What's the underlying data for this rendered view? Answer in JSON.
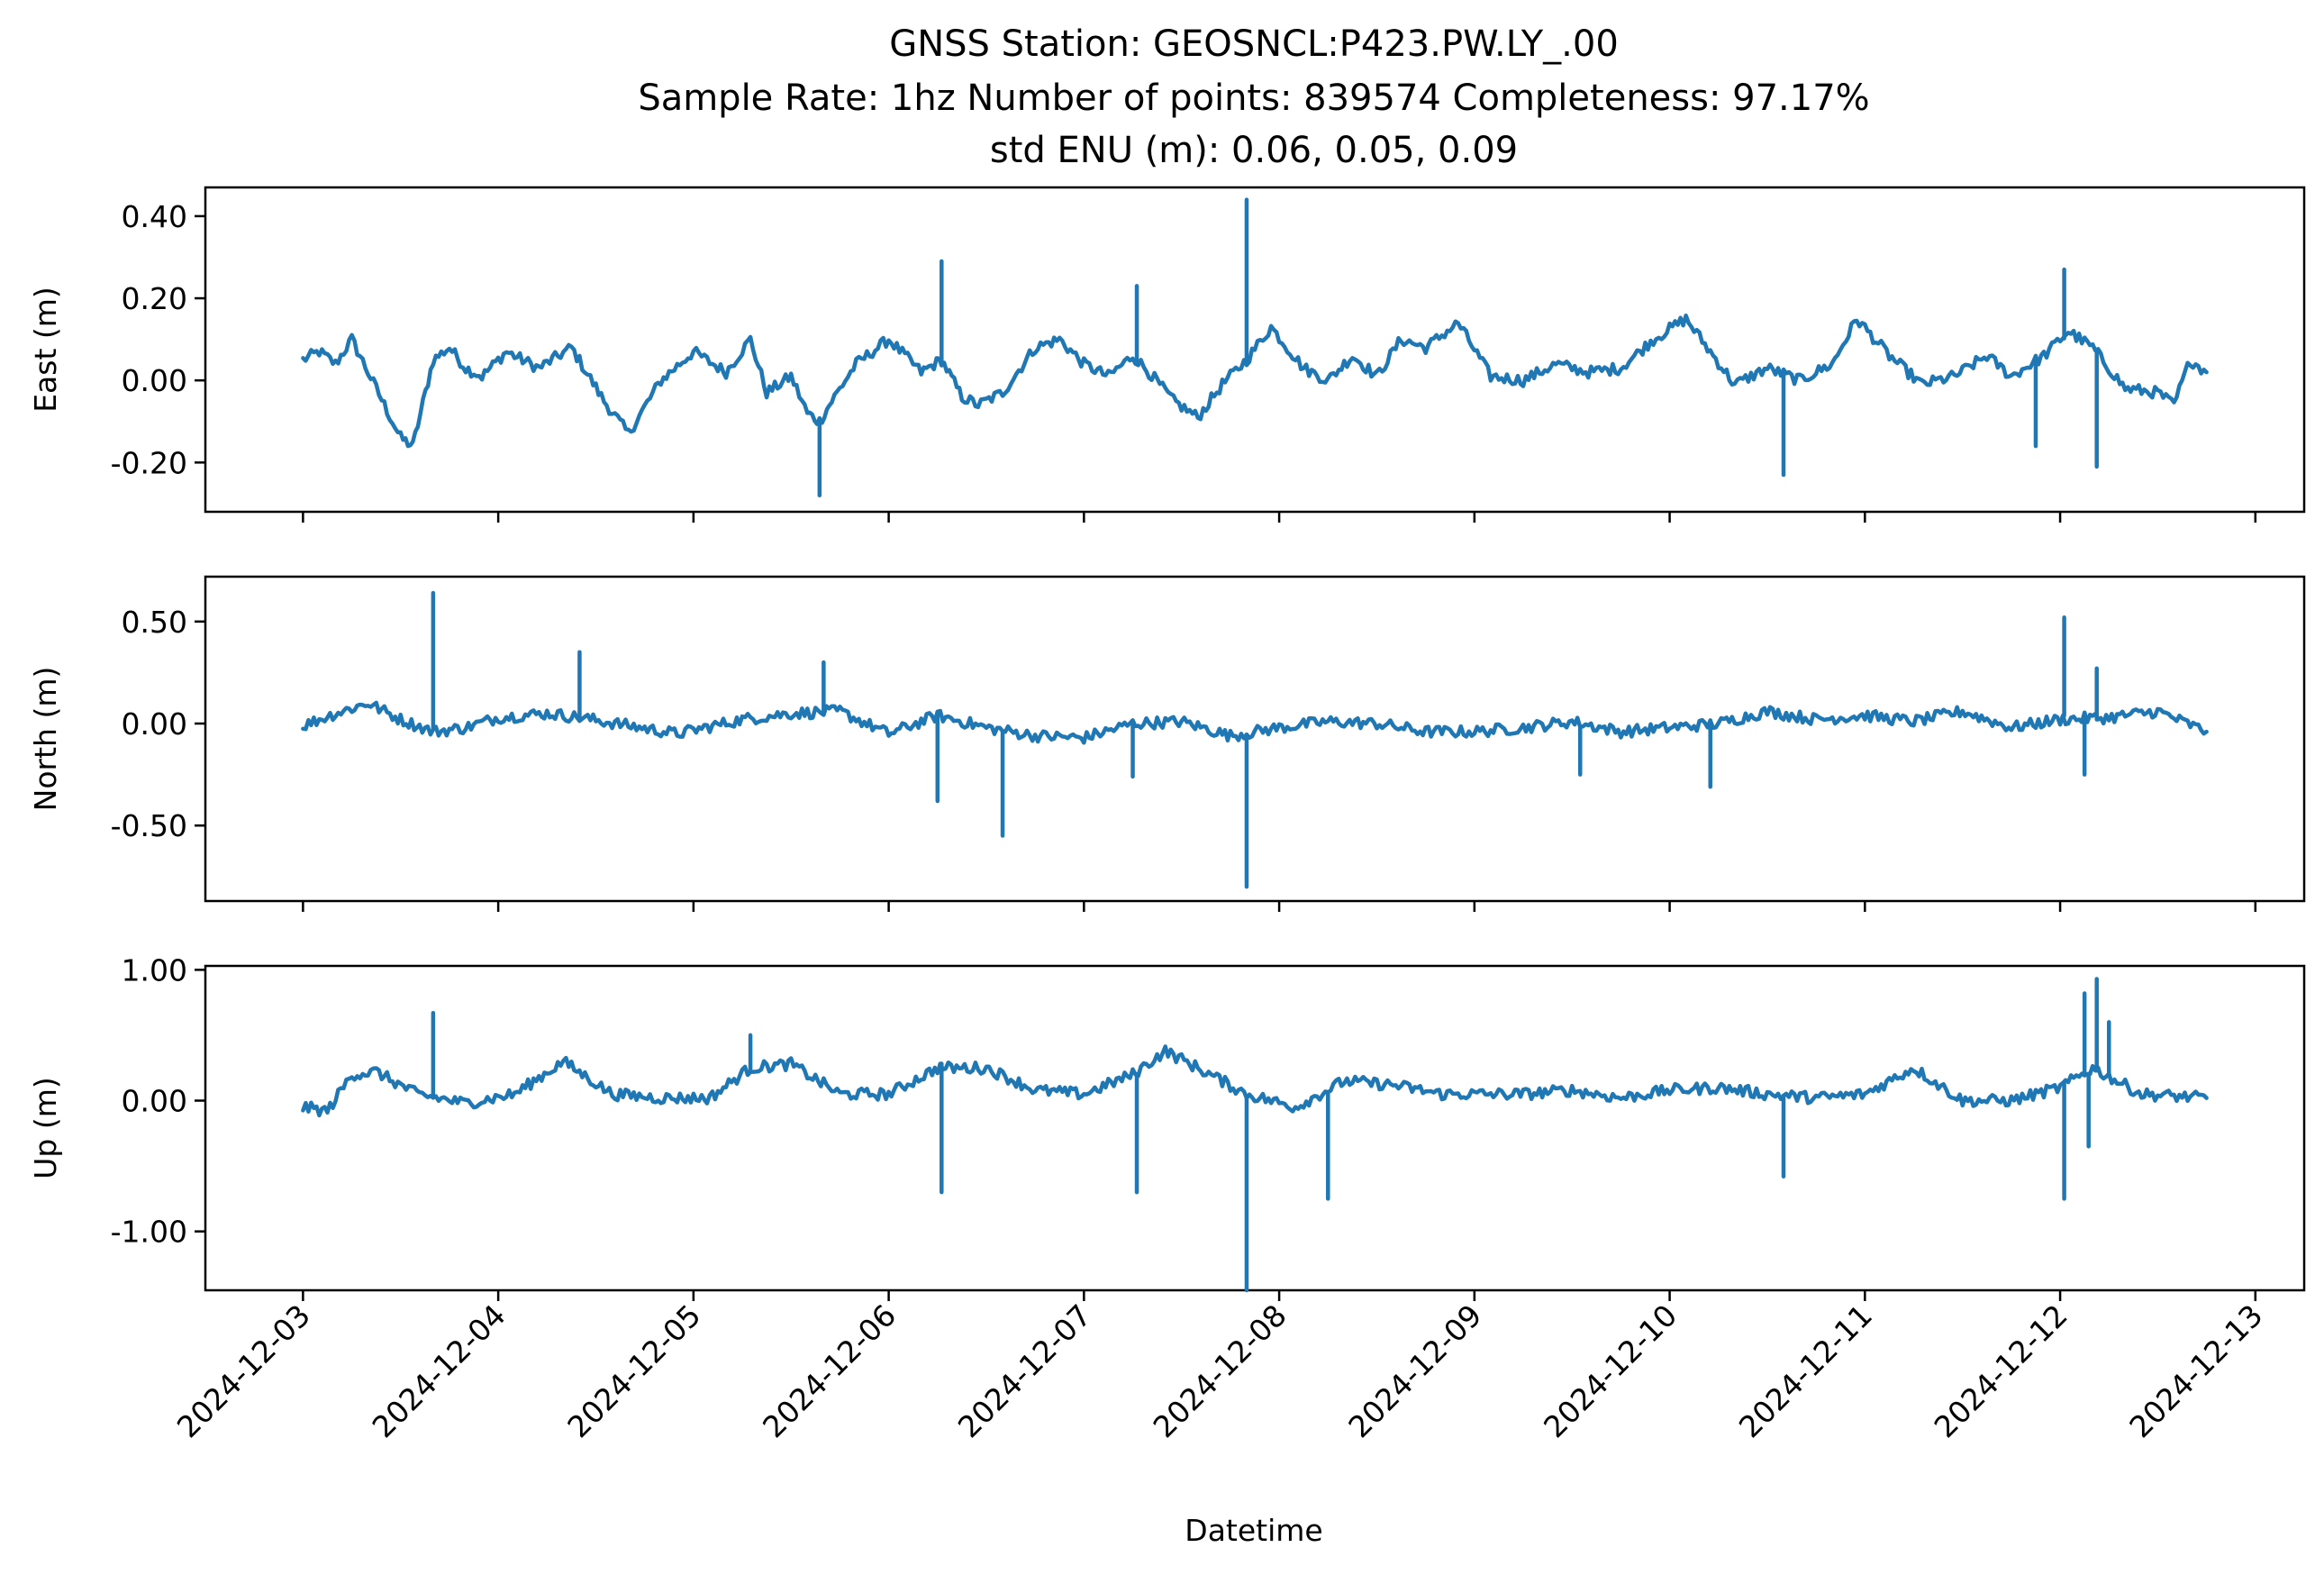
{
  "chart_data": {
    "type": "line",
    "title_lines": [
      "GNSS Station: GEOSNCL:P423.PW.LY_.00",
      "Sample Rate: 1hz   Number of points: 839574    Completeness:  97.17%",
      "std ENU (m):  0.06, 0.05, 0.09"
    ],
    "xlabel": "Datetime",
    "x_ticks": [
      "2024-12-03",
      "2024-12-04",
      "2024-12-05",
      "2024-12-06",
      "2024-12-07",
      "2024-12-08",
      "2024-12-09",
      "2024-12-10",
      "2024-12-11",
      "2024-12-12",
      "2024-12-13"
    ],
    "x_range": [
      "2024-12-02T12:00",
      "2024-12-13T06:00"
    ],
    "color": "#1f77b4",
    "grid": false,
    "panels": [
      {
        "ylabel": "East (m)",
        "ylim": [
          -0.32,
          0.47
        ],
        "y_ticks": [
          0.4,
          0.2,
          0.0,
          -0.2
        ],
        "y_tick_labels": [
          "0.40",
          "0.20",
          "0.00",
          "-0.20"
        ],
        "points": [
          [
            "2024-12-03T00:00",
            0.05
          ],
          [
            "2024-12-03T02:00",
            0.07
          ],
          [
            "2024-12-03T04:00",
            0.04
          ],
          [
            "2024-12-03T06:00",
            0.1
          ],
          [
            "2024-12-03T08:00",
            0.02
          ],
          [
            "2024-12-03T10:00",
            -0.06
          ],
          [
            "2024-12-03T12:00",
            -0.14
          ],
          [
            "2024-12-03T13:30",
            -0.16
          ],
          [
            "2024-12-03T16:00",
            0.05
          ],
          [
            "2024-12-03T18:00",
            0.08
          ],
          [
            "2024-12-03T20:00",
            0.03
          ],
          [
            "2024-12-03T22:00",
            0.01
          ],
          [
            "2024-12-04T01:00",
            0.07
          ],
          [
            "2024-12-04T05:00",
            0.03
          ],
          [
            "2024-12-04T09:00",
            0.08
          ],
          [
            "2024-12-04T13:00",
            -0.05
          ],
          [
            "2024-12-04T16:00",
            -0.13
          ],
          [
            "2024-12-04T20:00",
            0.0
          ],
          [
            "2024-12-05T00:00",
            0.07
          ],
          [
            "2024-12-05T04:00",
            0.02
          ],
          [
            "2024-12-05T07:00",
            0.1
          ],
          [
            "2024-12-05T09:00",
            -0.03
          ],
          [
            "2024-12-05T12:00",
            0.01
          ],
          [
            "2024-12-05T14:00",
            -0.08
          ],
          [
            "2024-12-05T15:30",
            -0.1
          ],
          [
            "2024-12-05T17:00",
            -0.05
          ],
          [
            "2024-12-05T20:00",
            0.04
          ],
          [
            "2024-12-06T00:00",
            0.1
          ],
          [
            "2024-12-06T04:00",
            0.02
          ],
          [
            "2024-12-06T06:30",
            0.05
          ],
          [
            "2024-12-06T09:00",
            -0.04
          ],
          [
            "2024-12-06T11:00",
            -0.06
          ],
          [
            "2024-12-06T14:00",
            -0.03
          ],
          [
            "2024-12-06T18:00",
            0.08
          ],
          [
            "2024-12-06T21:00",
            0.1
          ],
          [
            "2024-12-07T00:00",
            0.04
          ],
          [
            "2024-12-07T03:00",
            0.01
          ],
          [
            "2024-12-07T06:00",
            0.06
          ],
          [
            "2024-12-07T08:00",
            0.02
          ],
          [
            "2024-12-07T11:00",
            -0.05
          ],
          [
            "2024-12-07T14:00",
            -0.09
          ],
          [
            "2024-12-07T17:00",
            -0.01
          ],
          [
            "2024-12-07T20:00",
            0.05
          ],
          [
            "2024-12-07T23:00",
            0.13
          ],
          [
            "2024-12-08T03:00",
            0.03
          ],
          [
            "2024-12-08T06:00",
            0.0
          ],
          [
            "2024-12-08T09:00",
            0.06
          ],
          [
            "2024-12-08T12:00",
            0.01
          ],
          [
            "2024-12-08T15:00",
            0.1
          ],
          [
            "2024-12-08T18:00",
            0.08
          ],
          [
            "2024-12-08T22:00",
            0.14
          ],
          [
            "2024-12-09T02:00",
            0.01
          ],
          [
            "2024-12-09T06:00",
            0.0
          ],
          [
            "2024-12-09T10:00",
            0.04
          ],
          [
            "2024-12-09T14:00",
            0.02
          ],
          [
            "2024-12-09T18:00",
            0.03
          ],
          [
            "2024-12-09T22:00",
            0.1
          ],
          [
            "2024-12-10T02:00",
            0.15
          ],
          [
            "2024-12-10T05:00",
            0.07
          ],
          [
            "2024-12-10T08:00",
            -0.01
          ],
          [
            "2024-12-10T12:00",
            0.03
          ],
          [
            "2024-12-10T16:00",
            0.0
          ],
          [
            "2024-12-10T20:00",
            0.04
          ],
          [
            "2024-12-10T23:00",
            0.15
          ],
          [
            "2024-12-11T03:00",
            0.06
          ],
          [
            "2024-12-11T07:00",
            -0.01
          ],
          [
            "2024-12-11T11:00",
            0.01
          ],
          [
            "2024-12-11T15:00",
            0.06
          ],
          [
            "2024-12-11T18:00",
            0.01
          ],
          [
            "2024-12-11T22:00",
            0.06
          ],
          [
            "2024-12-12T01:00",
            0.12
          ],
          [
            "2024-12-12T04:00",
            0.08
          ],
          [
            "2024-12-12T08:00",
            -0.02
          ],
          [
            "2024-12-12T12:00",
            -0.03
          ],
          [
            "2024-12-12T14:00",
            -0.06
          ],
          [
            "2024-12-12T16:00",
            0.05
          ],
          [
            "2024-12-12T18:00",
            0.02
          ]
        ],
        "spikes": [
          [
            "2024-12-06T06:30",
            0.29
          ],
          [
            "2024-12-07T20:00",
            0.44
          ],
          [
            "2024-12-07T06:30",
            0.23
          ],
          [
            "2024-12-05T15:30",
            -0.28
          ],
          [
            "2024-12-10T14:00",
            -0.23
          ],
          [
            "2024-12-12T00:30",
            0.27
          ],
          [
            "2024-12-12T04:30",
            -0.21
          ],
          [
            "2024-12-11T21:00",
            -0.16
          ]
        ]
      },
      {
        "ylabel": "North (m)",
        "ylim": [
          -0.87,
          0.72
        ],
        "y_ticks": [
          0.5,
          0.0,
          -0.5
        ],
        "y_tick_labels": [
          "0.50",
          "0.00",
          "-0.50"
        ],
        "points": [
          [
            "2024-12-03T00:00",
            -0.01
          ],
          [
            "2024-12-03T04:00",
            0.05
          ],
          [
            "2024-12-03T08:00",
            0.1
          ],
          [
            "2024-12-03T12:00",
            0.02
          ],
          [
            "2024-12-03T16:00",
            -0.04
          ],
          [
            "2024-12-03T20:00",
            -0.02
          ],
          [
            "2024-12-04T00:00",
            0.03
          ],
          [
            "2024-12-04T06:00",
            0.05
          ],
          [
            "2024-12-04T10:00",
            0.03
          ],
          [
            "2024-12-04T16:00",
            -0.01
          ],
          [
            "2024-12-04T22:00",
            -0.05
          ],
          [
            "2024-12-05T06:00",
            0.02
          ],
          [
            "2024-12-05T12:00",
            0.05
          ],
          [
            "2024-12-05T18:00",
            0.06
          ],
          [
            "2024-12-06T00:00",
            -0.05
          ],
          [
            "2024-12-06T06:00",
            0.04
          ],
          [
            "2024-12-06T12:00",
            -0.02
          ],
          [
            "2024-12-06T18:00",
            -0.06
          ],
          [
            "2024-12-07T00:00",
            -0.07
          ],
          [
            "2024-12-07T06:00",
            0.0
          ],
          [
            "2024-12-07T12:00",
            0.01
          ],
          [
            "2024-12-07T18:00",
            -0.06
          ],
          [
            "2024-12-08T00:00",
            -0.02
          ],
          [
            "2024-12-08T06:00",
            0.01
          ],
          [
            "2024-12-08T12:00",
            0.0
          ],
          [
            "2024-12-08T18:00",
            -0.04
          ],
          [
            "2024-12-09T00:00",
            -0.04
          ],
          [
            "2024-12-09T06:00",
            -0.02
          ],
          [
            "2024-12-09T12:00",
            0.01
          ],
          [
            "2024-12-09T18:00",
            -0.04
          ],
          [
            "2024-12-10T00:00",
            -0.02
          ],
          [
            "2024-12-10T06:00",
            0.0
          ],
          [
            "2024-12-10T12:00",
            0.06
          ],
          [
            "2024-12-10T18:00",
            0.02
          ],
          [
            "2024-12-11T00:00",
            0.04
          ],
          [
            "2024-12-11T06:00",
            0.01
          ],
          [
            "2024-12-11T12:00",
            0.06
          ],
          [
            "2024-12-11T18:00",
            -0.02
          ],
          [
            "2024-12-12T00:00",
            0.02
          ],
          [
            "2024-12-12T06:00",
            0.03
          ],
          [
            "2024-12-12T12:00",
            0.06
          ],
          [
            "2024-12-12T18:00",
            -0.04
          ]
        ],
        "spikes": [
          [
            "2024-12-03T16:00",
            0.64
          ],
          [
            "2024-12-04T10:00",
            0.35
          ],
          [
            "2024-12-05T16:00",
            0.3
          ],
          [
            "2024-12-06T06:00",
            -0.38
          ],
          [
            "2024-12-06T14:00",
            -0.55
          ],
          [
            "2024-12-07T20:00",
            -0.8
          ],
          [
            "2024-12-07T06:00",
            -0.26
          ],
          [
            "2024-12-10T05:00",
            -0.31
          ],
          [
            "2024-12-12T00:30",
            0.52
          ],
          [
            "2024-12-12T04:30",
            0.27
          ],
          [
            "2024-12-12T03:00",
            -0.25
          ],
          [
            "2024-12-09T13:00",
            -0.25
          ]
        ]
      },
      {
        "ylabel": "Up (m)",
        "ylim": [
          -1.45,
          1.03
        ],
        "y_ticks": [
          1.0,
          0.0,
          -1.0
        ],
        "y_tick_labels": [
          "1.00",
          "0.00",
          "-1.00"
        ],
        "points": [
          [
            "2024-12-03T00:00",
            -0.05
          ],
          [
            "2024-12-03T03:00",
            -0.08
          ],
          [
            "2024-12-03T06:00",
            0.2
          ],
          [
            "2024-12-03T09:00",
            0.22
          ],
          [
            "2024-12-03T14:00",
            0.05
          ],
          [
            "2024-12-03T20:00",
            -0.02
          ],
          [
            "2024-12-04T02:00",
            0.05
          ],
          [
            "2024-12-04T08:00",
            0.3
          ],
          [
            "2024-12-04T14:00",
            0.05
          ],
          [
            "2024-12-04T20:00",
            0.02
          ],
          [
            "2024-12-05T02:00",
            0.02
          ],
          [
            "2024-12-05T07:00",
            0.25
          ],
          [
            "2024-12-05T12:00",
            0.28
          ],
          [
            "2024-12-05T18:00",
            0.05
          ],
          [
            "2024-12-06T00:00",
            0.05
          ],
          [
            "2024-12-06T06:00",
            0.25
          ],
          [
            "2024-12-06T12:00",
            0.25
          ],
          [
            "2024-12-06T18:00",
            0.08
          ],
          [
            "2024-12-07T00:00",
            0.05
          ],
          [
            "2024-12-07T06:00",
            0.2
          ],
          [
            "2024-12-07T10:00",
            0.38
          ],
          [
            "2024-12-07T14:00",
            0.25
          ],
          [
            "2024-12-07T20:00",
            0.05
          ],
          [
            "2024-12-08T02:00",
            -0.05
          ],
          [
            "2024-12-08T08:00",
            0.15
          ],
          [
            "2024-12-08T14:00",
            0.12
          ],
          [
            "2024-12-08T20:00",
            0.05
          ],
          [
            "2024-12-09T06:00",
            0.05
          ],
          [
            "2024-12-09T12:00",
            0.08
          ],
          [
            "2024-12-09T18:00",
            0.02
          ],
          [
            "2024-12-10T00:00",
            0.08
          ],
          [
            "2024-12-10T06:00",
            0.1
          ],
          [
            "2024-12-10T12:00",
            0.05
          ],
          [
            "2024-12-10T18:00",
            0.02
          ],
          [
            "2024-12-11T00:00",
            0.05
          ],
          [
            "2024-12-11T06:00",
            0.25
          ],
          [
            "2024-12-11T12:00",
            0.0
          ],
          [
            "2024-12-11T18:00",
            0.0
          ],
          [
            "2024-12-12T00:00",
            0.1
          ],
          [
            "2024-12-12T04:00",
            0.25
          ],
          [
            "2024-12-12T10:00",
            0.05
          ],
          [
            "2024-12-12T18:00",
            0.02
          ]
        ],
        "spikes": [
          [
            "2024-12-03T16:00",
            0.67
          ],
          [
            "2024-12-06T06:30",
            -0.7
          ],
          [
            "2024-12-07T06:30",
            -0.7
          ],
          [
            "2024-12-07T20:00",
            -1.45
          ],
          [
            "2024-12-08T06:00",
            -0.75
          ],
          [
            "2024-12-10T14:00",
            -0.58
          ],
          [
            "2024-12-12T00:30",
            -0.75
          ],
          [
            "2024-12-12T03:00",
            0.82
          ],
          [
            "2024-12-12T04:30",
            0.93
          ],
          [
            "2024-12-12T06:00",
            0.6
          ],
          [
            "2024-12-12T03:30",
            -0.35
          ],
          [
            "2024-12-05T07:00",
            0.5
          ]
        ]
      }
    ]
  }
}
